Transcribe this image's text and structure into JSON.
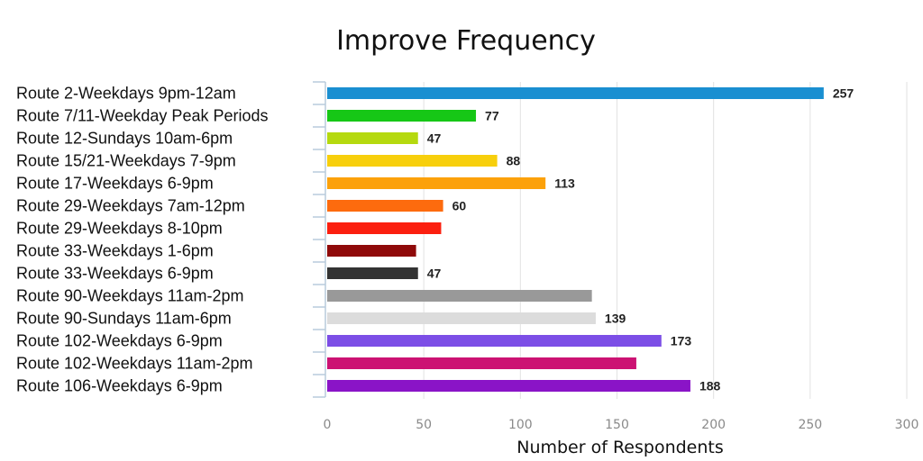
{
  "chart_data": {
    "type": "bar",
    "orientation": "horizontal",
    "title": "Improve Frequency",
    "xlabel": "Number of Respondents",
    "ylabel": "",
    "xlim": [
      0,
      300
    ],
    "xticks": [
      "0",
      "50",
      "100",
      "150",
      "200",
      "250",
      "300"
    ],
    "grid": "vertical",
    "legend": "none",
    "categories": [
      "Route 2-Weekdays 9pm-12am",
      "Route 7/11-Weekday Peak Periods",
      "Route 12-Sundays 10am-6pm",
      "Route 15/21-Weekdays 7-9pm",
      "Route 17-Weekdays 6-9pm",
      "Route 29-Weekdays 7am-12pm",
      "Route 29-Weekdays 8-10pm",
      "Route 33-Weekdays 1-6pm",
      "Route 33-Weekdays 6-9pm",
      "Route 90-Weekdays 11am-2pm",
      "Route 90-Sundays 11am-6pm",
      "Route 102-Weekdays 6-9pm",
      "Route 102-Weekdays 11am-2pm",
      "Route 106-Weekdays 6-9pm"
    ],
    "values": [
      257,
      77,
      47,
      88,
      113,
      60,
      59,
      46,
      47,
      137,
      139,
      173,
      160,
      188
    ],
    "data_labels": [
      "257",
      "77",
      "47",
      "88",
      "113",
      "60",
      "",
      "",
      "47",
      "",
      "139",
      "173",
      "",
      "188"
    ],
    "colors": [
      "#1a8fd1",
      "#16c716",
      "#b5d90f",
      "#f7cf0c",
      "#fca10a",
      "#fd6b0e",
      "#fb1f0f",
      "#8f0a0a",
      "#333333",
      "#999999",
      "#dcdcdc",
      "#7c4ee6",
      "#cc1273",
      "#8a14c7"
    ]
  }
}
